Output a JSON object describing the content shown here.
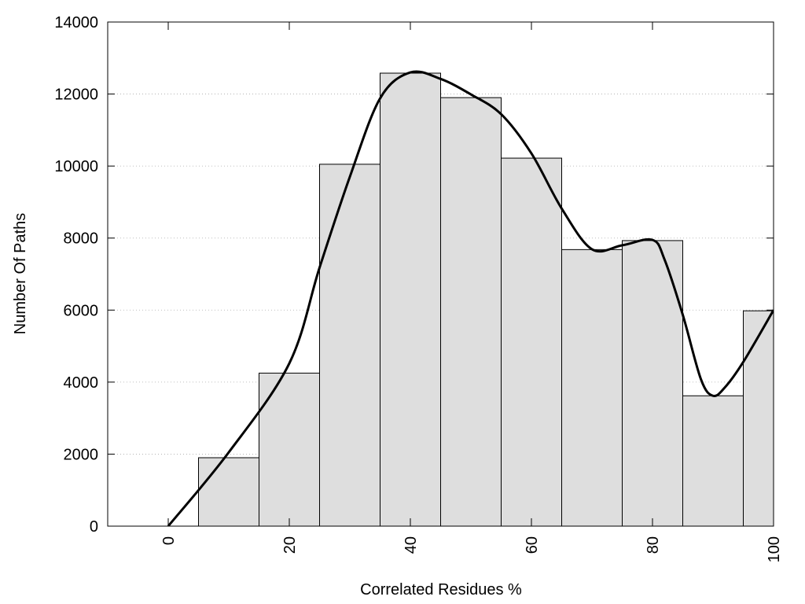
{
  "chart_data": {
    "type": "histogram",
    "xlabel": "Correlated Residues %",
    "ylabel": "Number Of Paths",
    "bins": [
      -5,
      5,
      15,
      25,
      35,
      45,
      55,
      65,
      75,
      85,
      95,
      105
    ],
    "counts": [
      0,
      1900,
      4250,
      10050,
      12580,
      11900,
      10220,
      7680,
      7930,
      3620,
      5980
    ],
    "color": "#dedede",
    "curve": {
      "color": "#000000",
      "x": [
        0,
        10,
        20,
        25,
        30,
        35,
        40,
        45,
        50,
        55,
        60,
        65,
        70,
        75,
        80,
        82,
        85,
        88,
        90,
        92,
        95,
        100
      ],
      "values": [
        0,
        2050,
        4520,
        7180,
        9700,
        11880,
        12600,
        12420,
        11990,
        11440,
        10350,
        8820,
        7690,
        7800,
        7950,
        7400,
        5870,
        4080,
        3620,
        3860,
        4560,
        6000
      ]
    },
    "xlim": [
      -10,
      100
    ],
    "ylim": [
      0,
      14000
    ],
    "xticks": [
      0,
      20,
      40,
      60,
      80,
      100
    ],
    "yticks": [
      0,
      2000,
      4000,
      6000,
      8000,
      10000,
      12000,
      14000
    ],
    "grid": true
  }
}
